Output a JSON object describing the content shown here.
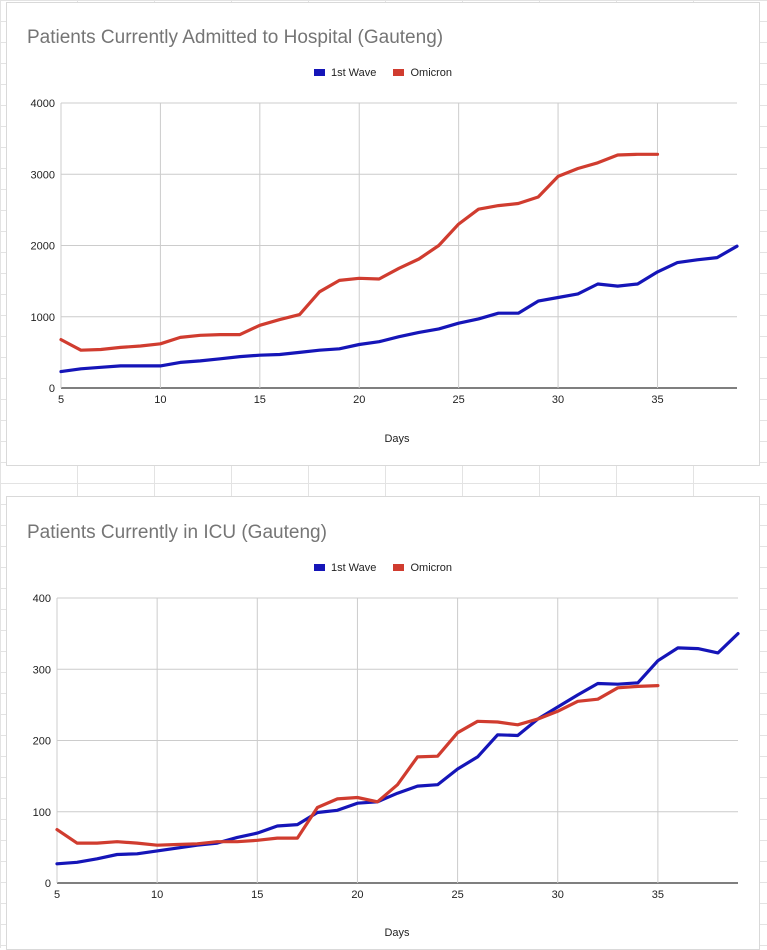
{
  "colors": {
    "first_wave": "#1515b8",
    "omicron": "#d03c2f",
    "grid": "#cccccc"
  },
  "chart_data": [
    {
      "type": "line",
      "title": "Patients Currently Admitted to Hospital (Gauteng)",
      "xlabel": "Days",
      "ylabel": "",
      "xlim": [
        5,
        39
      ],
      "ylim": [
        0,
        4000
      ],
      "x_ticks": [
        5,
        10,
        15,
        20,
        25,
        30,
        35
      ],
      "y_ticks": [
        0,
        1000,
        2000,
        3000,
        4000
      ],
      "grid": true,
      "legend_position": "top",
      "series": [
        {
          "name": "1st Wave",
          "color": "#1515b8",
          "x": [
            5,
            6,
            7,
            8,
            9,
            10,
            11,
            12,
            13,
            14,
            15,
            16,
            17,
            18,
            19,
            20,
            21,
            22,
            23,
            24,
            25,
            26,
            27,
            28,
            29,
            30,
            31,
            32,
            33,
            34,
            35,
            36,
            37,
            38,
            39
          ],
          "values": [
            230,
            270,
            290,
            310,
            310,
            310,
            360,
            380,
            410,
            440,
            460,
            470,
            500,
            530,
            550,
            610,
            650,
            720,
            780,
            830,
            910,
            970,
            1050,
            1050,
            1220,
            1270,
            1320,
            1460,
            1430,
            1460,
            1630,
            1760,
            1800,
            1830,
            1990
          ]
        },
        {
          "name": "Omicron",
          "color": "#d03c2f",
          "x": [
            5,
            6,
            7,
            8,
            9,
            10,
            11,
            12,
            13,
            14,
            15,
            16,
            17,
            18,
            19,
            20,
            21,
            22,
            23,
            24,
            25,
            26,
            27,
            28,
            29,
            30,
            31,
            32,
            33,
            34,
            35
          ],
          "values": [
            680,
            530,
            540,
            570,
            590,
            620,
            710,
            740,
            750,
            750,
            880,
            960,
            1030,
            1350,
            1510,
            1540,
            1530,
            1680,
            1810,
            2000,
            2300,
            2510,
            2560,
            2590,
            2680,
            2970,
            3080,
            3160,
            3270,
            3280,
            3280
          ]
        }
      ]
    },
    {
      "type": "line",
      "title": "Patients Currently in ICU (Gauteng)",
      "xlabel": "Days",
      "ylabel": "",
      "xlim": [
        5,
        39
      ],
      "ylim": [
        0,
        400
      ],
      "x_ticks": [
        5,
        10,
        15,
        20,
        25,
        30,
        35
      ],
      "y_ticks": [
        0,
        100,
        200,
        300,
        400
      ],
      "grid": true,
      "legend_position": "top",
      "series": [
        {
          "name": "1st Wave",
          "color": "#1515b8",
          "x": [
            5,
            6,
            7,
            8,
            9,
            10,
            11,
            12,
            13,
            14,
            15,
            16,
            17,
            18,
            19,
            20,
            21,
            22,
            23,
            24,
            25,
            26,
            27,
            28,
            29,
            30,
            31,
            32,
            33,
            34,
            35,
            36,
            37,
            38,
            39
          ],
          "values": [
            27,
            29,
            34,
            40,
            41,
            45,
            49,
            53,
            56,
            64,
            70,
            80,
            82,
            99,
            102,
            112,
            114,
            126,
            136,
            138,
            160,
            177,
            208,
            207,
            230,
            247,
            264,
            280,
            279,
            281,
            312,
            330,
            329,
            323,
            350
          ]
        },
        {
          "name": "Omicron",
          "color": "#d03c2f",
          "x": [
            5,
            6,
            7,
            8,
            9,
            10,
            11,
            12,
            13,
            14,
            15,
            16,
            17,
            18,
            19,
            20,
            21,
            22,
            23,
            24,
            25,
            26,
            27,
            28,
            29,
            30,
            31,
            32,
            33,
            34,
            35
          ],
          "values": [
            75,
            56,
            56,
            58,
            56,
            53,
            54,
            55,
            58,
            58,
            60,
            63,
            63,
            106,
            118,
            120,
            114,
            138,
            177,
            178,
            211,
            227,
            226,
            222,
            230,
            241,
            255,
            258,
            274,
            276,
            277
          ]
        }
      ]
    }
  ]
}
